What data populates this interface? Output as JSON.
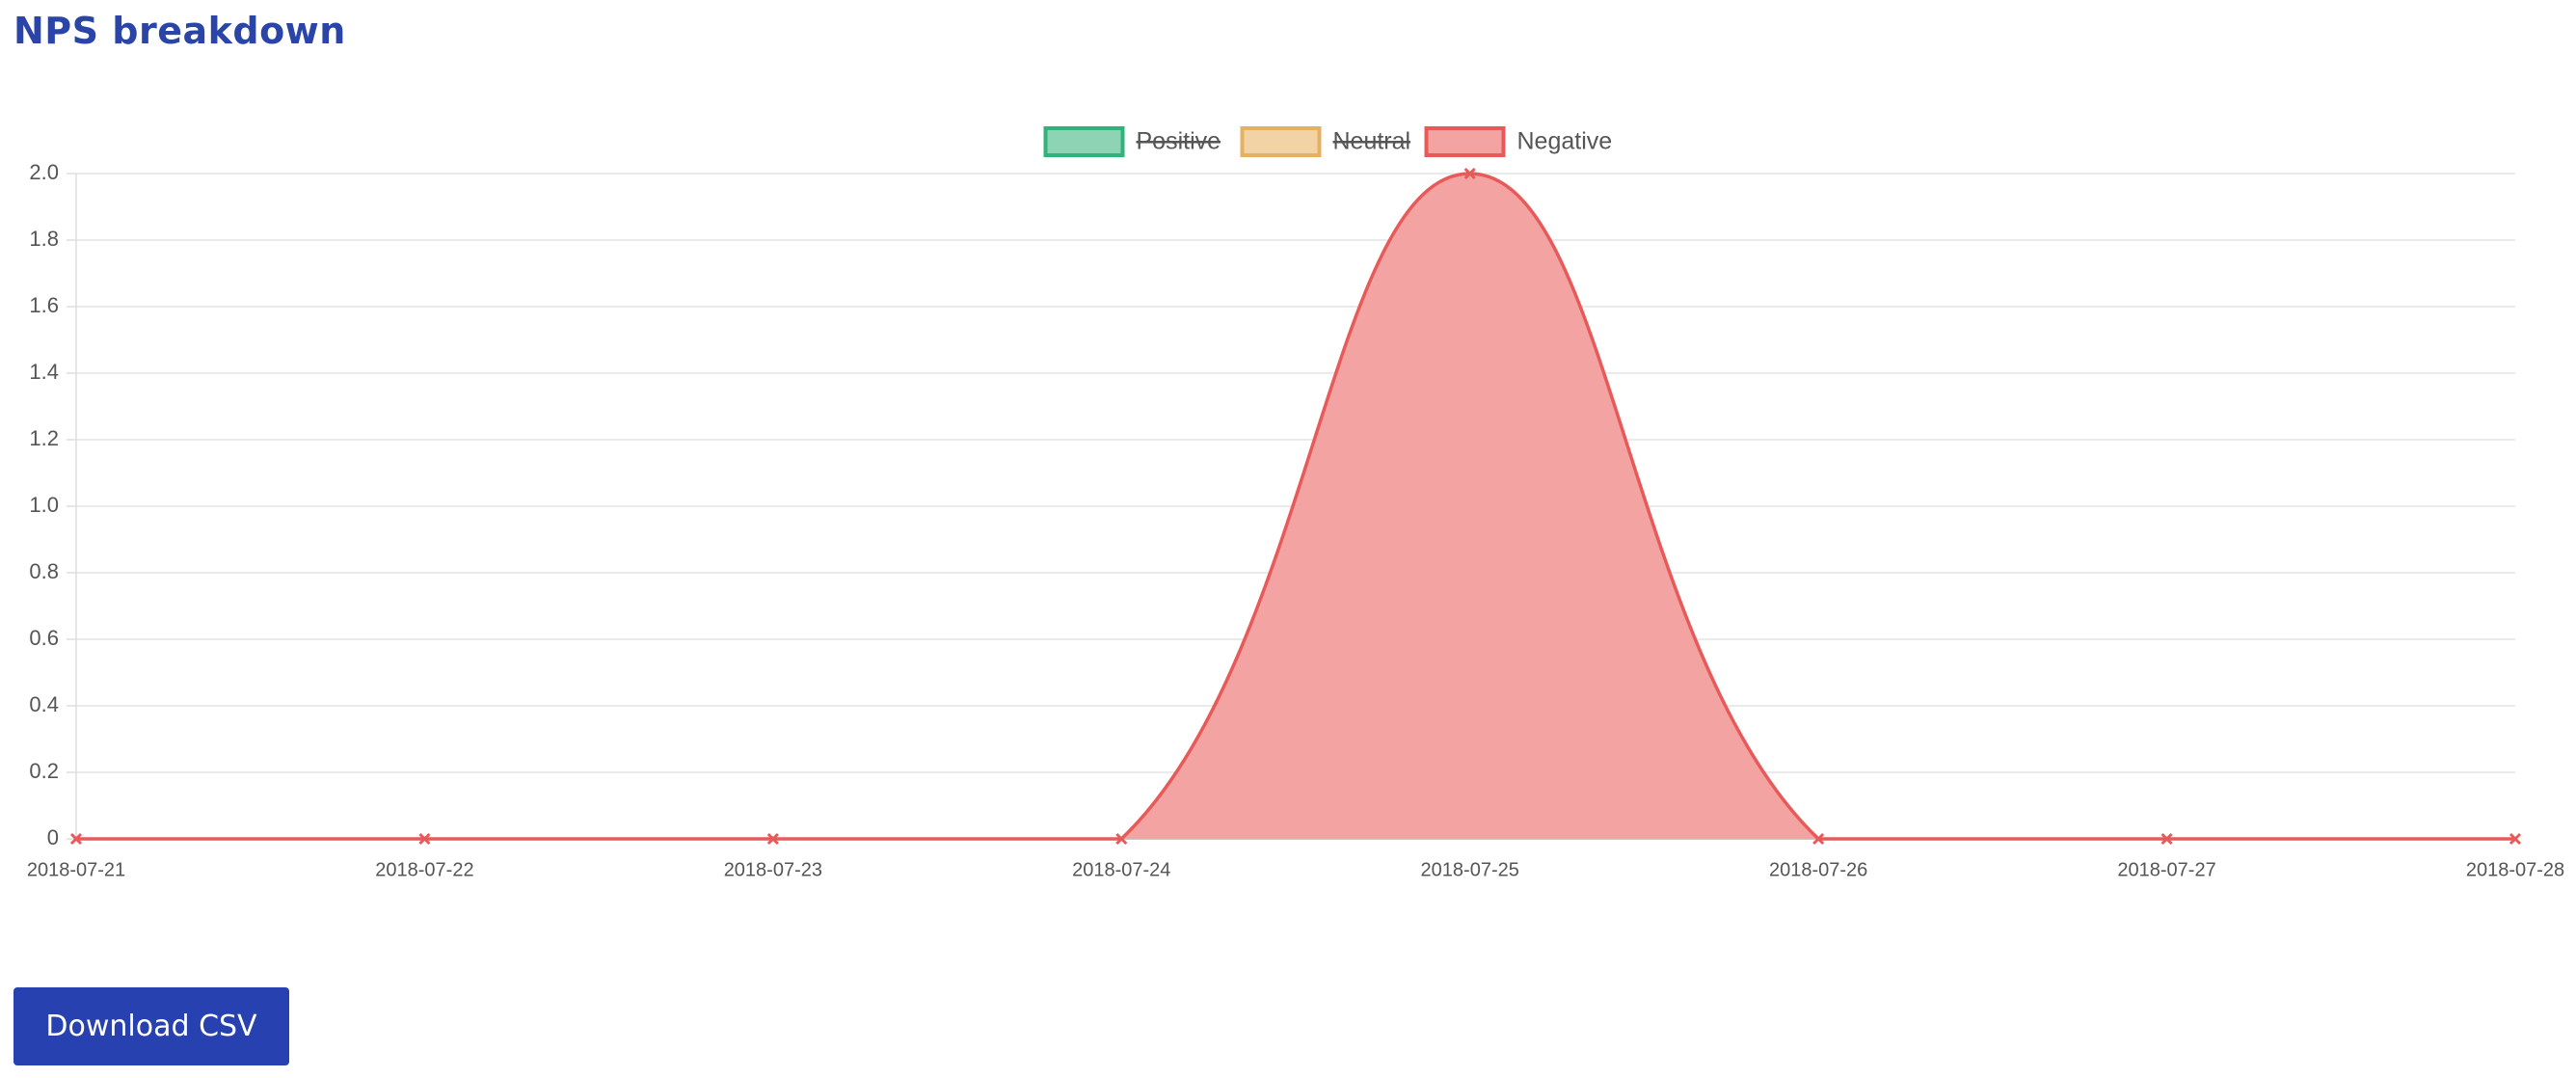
{
  "title": "NPS breakdown",
  "button": "Download CSV",
  "chart_data": {
    "type": "area",
    "x": [
      "2018-07-21",
      "2018-07-22",
      "2018-07-23",
      "2018-07-24",
      "2018-07-25",
      "2018-07-26",
      "2018-07-27",
      "2018-07-28"
    ],
    "series": [
      {
        "name": "Positive",
        "color": "#2fb37a",
        "fill": "#8fd3b5",
        "hidden": true
      },
      {
        "name": "Neutral",
        "color": "#e6b060",
        "fill": "#f1d3a6",
        "hidden": true
      },
      {
        "name": "Negative",
        "color": "#e85a5a",
        "fill": "#f4a3a3",
        "hidden": false,
        "values": [
          0,
          0,
          0,
          0,
          2,
          0,
          0,
          0
        ]
      }
    ],
    "ylim": [
      0,
      2
    ],
    "yticks": [
      0,
      0.2,
      0.4,
      0.6,
      0.8,
      {
        "value": 1,
        "label": "1.0"
      },
      1.2,
      1.4,
      1.6,
      1.8,
      {
        "value": 2,
        "label": "2.0"
      }
    ],
    "grid": true,
    "legend": "top"
  }
}
